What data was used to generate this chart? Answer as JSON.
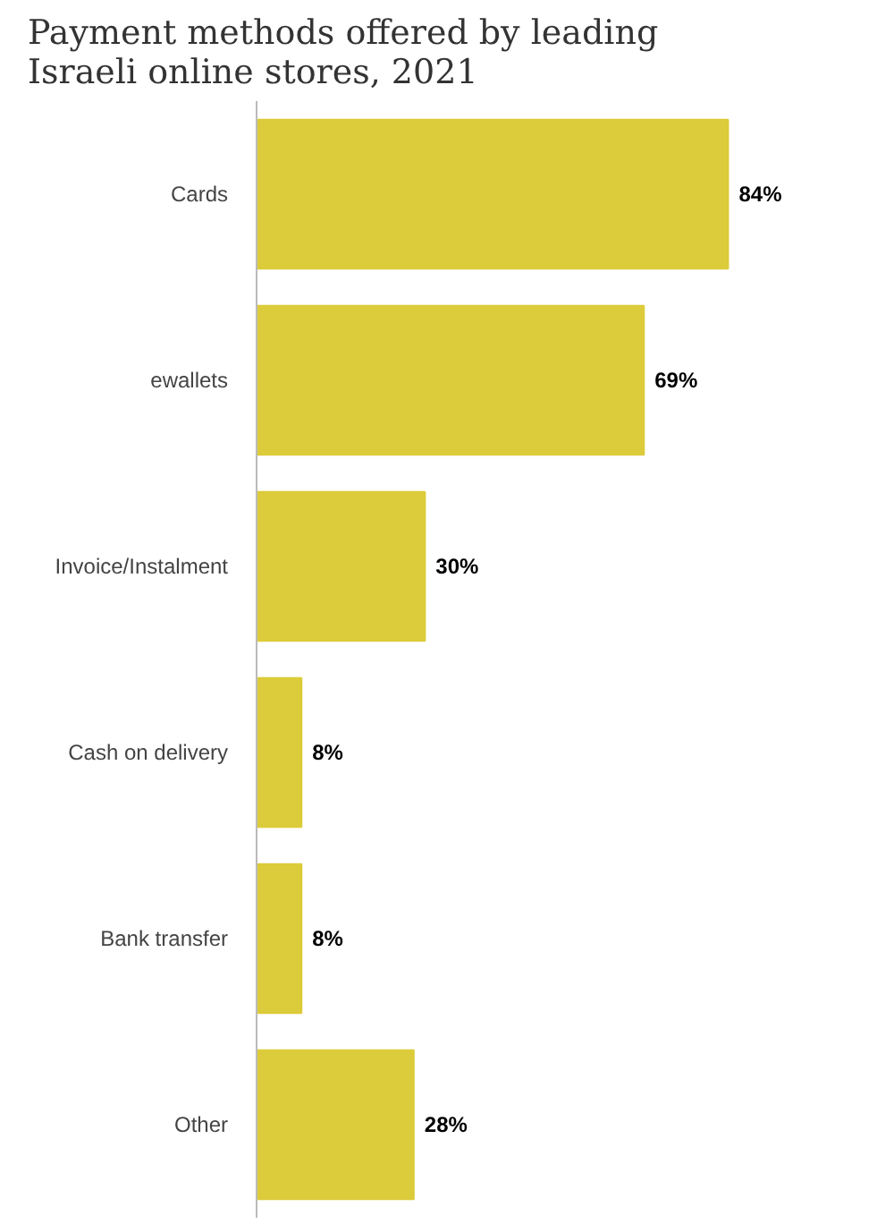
{
  "chart_data": {
    "type": "bar",
    "orientation": "horizontal",
    "title": "Payment methods offered by leading Israeli online stores, 2021",
    "categories": [
      "Cards",
      "ewallets",
      "Invoice/Instalment",
      "Cash on delivery",
      "Bank transfer",
      "Other"
    ],
    "values": [
      84,
      69,
      30,
      8,
      8,
      28
    ],
    "value_labels": [
      "84%",
      "69%",
      "30%",
      "8%",
      "8%",
      "28%"
    ],
    "color": "#dccb3a"
  }
}
